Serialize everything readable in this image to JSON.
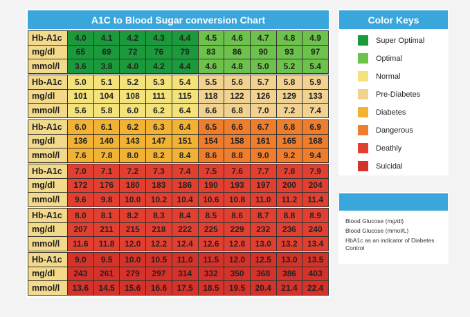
{
  "header": {
    "title": "A1C to Blood Sugar conversion Chart"
  },
  "table": {
    "blocks": [
      {
        "cell_colors": [
          "#1a9a3a",
          "#1a9a3a",
          "#1a9a3a",
          "#1a9a3a",
          "#1a9a3a",
          "#6cc24a",
          "#6cc24a",
          "#6cc24a",
          "#6cc24a",
          "#6cc24a"
        ],
        "rows": [
          {
            "label": "Hb-A1c",
            "cells": [
              "4.0",
              "4.1",
              "4.2",
              "4.3",
              "4.4",
              "4.5",
              "4.6",
              "4.7",
              "4.8",
              "4.9"
            ]
          },
          {
            "label": "mg/dl",
            "cells": [
              "65",
              "69",
              "72",
              "76",
              "79",
              "83",
              "86",
              "90",
              "93",
              "97"
            ]
          },
          {
            "label": "mmol/l",
            "cells": [
              "3.6",
              "3.8",
              "4.0",
              "4.2",
              "4.4",
              "4.6",
              "4.8",
              "5.0",
              "5.2",
              "5.4"
            ]
          }
        ]
      },
      {
        "cell_colors": [
          "#f4e37a",
          "#f4e37a",
          "#f4e37a",
          "#f4e37a",
          "#f4e37a",
          "#f2d291",
          "#f2d291",
          "#f2d291",
          "#f2d291",
          "#f2d291"
        ],
        "rows": [
          {
            "label": "Hb-A1c",
            "cells": [
              "5.0",
              "5.1",
              "5.2",
              "5.3",
              "5.4",
              "5.5",
              "5.6",
              "5.7",
              "5.8",
              "5.9"
            ]
          },
          {
            "label": "mg/dl",
            "cells": [
              "101",
              "104",
              "108",
              "111",
              "115",
              "118",
              "122",
              "126",
              "129",
              "133"
            ]
          },
          {
            "label": "mmol/l",
            "cells": [
              "5.6",
              "5.8",
              "6.0",
              "6.2",
              "6.4",
              "6.6",
              "6.8",
              "7.0",
              "7.2",
              "7.4"
            ]
          }
        ]
      },
      {
        "cell_colors": [
          "#f2b233",
          "#f2b233",
          "#f2b233",
          "#f2b233",
          "#f2b233",
          "#ef7d2c",
          "#ef7d2c",
          "#ef7d2c",
          "#ef7d2c",
          "#ef7d2c"
        ],
        "rows": [
          {
            "label": "Hb-A1c",
            "cells": [
              "6.0",
              "6.1",
              "6.2",
              "6.3",
              "6.4",
              "6.5",
              "6.6",
              "6.7",
              "6.8",
              "6.9"
            ]
          },
          {
            "label": "mg/dl",
            "cells": [
              "136",
              "140",
              "143",
              "147",
              "151",
              "154",
              "158",
              "161",
              "165",
              "168"
            ]
          },
          {
            "label": "mmol/l",
            "cells": [
              "7.6",
              "7.8",
              "8.0",
              "8.2",
              "8.4",
              "8.6",
              "8.8",
              "9.0",
              "9.2",
              "9.4"
            ]
          }
        ]
      },
      {
        "cell_colors": [
          "#e33f31",
          "#e33f31",
          "#e33f31",
          "#e33f31",
          "#e33f31",
          "#e33f31",
          "#e33f31",
          "#e33f31",
          "#e33f31",
          "#e33f31"
        ],
        "rows": [
          {
            "label": "Hb-A1c",
            "cells": [
              "7.0",
              "7.1",
              "7.2",
              "7.3",
              "7.4",
              "7.5",
              "7.6",
              "7.7",
              "7.8",
              "7.9"
            ]
          },
          {
            "label": "mg/dl",
            "cells": [
              "172",
              "176",
              "180",
              "183",
              "186",
              "190",
              "193",
              "197",
              "200",
              "204"
            ]
          },
          {
            "label": "mmol/l",
            "cells": [
              "9.6",
              "9.8",
              "10.0",
              "10.2",
              "10.4",
              "10.6",
              "10.8",
              "11.0",
              "11.2",
              "11.4"
            ]
          }
        ]
      },
      {
        "cell_colors": [
          "#e33f31",
          "#e33f31",
          "#e33f31",
          "#e33f31",
          "#e33f31",
          "#e33f31",
          "#e33f31",
          "#e33f31",
          "#e33f31",
          "#e33f31"
        ],
        "rows": [
          {
            "label": "Hb-A1c",
            "cells": [
              "8.0",
              "8.1",
              "8.2",
              "8.3",
              "8.4",
              "8.5",
              "8.6",
              "8.7",
              "8.8",
              "8.9"
            ]
          },
          {
            "label": "mg/dl",
            "cells": [
              "207",
              "211",
              "215",
              "218",
              "222",
              "225",
              "229",
              "232",
              "236",
              "240"
            ]
          },
          {
            "label": "mmol/l",
            "cells": [
              "11.6",
              "11.8",
              "12.0",
              "12.2",
              "12.4",
              "12.6",
              "12.8",
              "13.0",
              "13.2",
              "13.4"
            ]
          }
        ]
      },
      {
        "cell_colors": [
          "#d5322a",
          "#d5322a",
          "#d5322a",
          "#d5322a",
          "#d5322a",
          "#d5322a",
          "#d5322a",
          "#d5322a",
          "#d5322a",
          "#d5322a"
        ],
        "rows": [
          {
            "label": "Hb-A1c",
            "cells": [
              "9.0",
              "9.5",
              "10.0",
              "10.5",
              "11.0",
              "11.5",
              "12.0",
              "12.5",
              "13.0",
              "13.5"
            ]
          },
          {
            "label": "mg/dl",
            "cells": [
              "243",
              "261",
              "279",
              "297",
              "314",
              "332",
              "350",
              "368",
              "386",
              "403"
            ]
          },
          {
            "label": "mmol/l",
            "cells": [
              "13.6",
              "14.5",
              "15.6",
              "16.6",
              "17.5",
              "18.5",
              "19.5",
              "20.4",
              "21.4",
              "22.4"
            ]
          }
        ]
      }
    ]
  },
  "color_keys": {
    "title": "Color Keys",
    "items": [
      {
        "label": "Super Optimal",
        "color": "#1a9a3a"
      },
      {
        "label": "Optimal",
        "color": "#6cc24a"
      },
      {
        "label": "Normal",
        "color": "#f4e37a"
      },
      {
        "label": "Pre-Diabetes",
        "color": "#f2d291"
      },
      {
        "label": "Diabetes",
        "color": "#f2b233"
      },
      {
        "label": "Dangerous",
        "color": "#ef7d2c"
      },
      {
        "label": "Deathly",
        "color": "#e33f31"
      },
      {
        "label": "Suicidal",
        "color": "#d5322a"
      }
    ]
  },
  "notes": {
    "items": [
      "Blood Glucose (mg/dl)",
      "Blood Glucose (mmol/L)",
      "HbA1c as an indicator of Diabetes Control"
    ]
  }
}
